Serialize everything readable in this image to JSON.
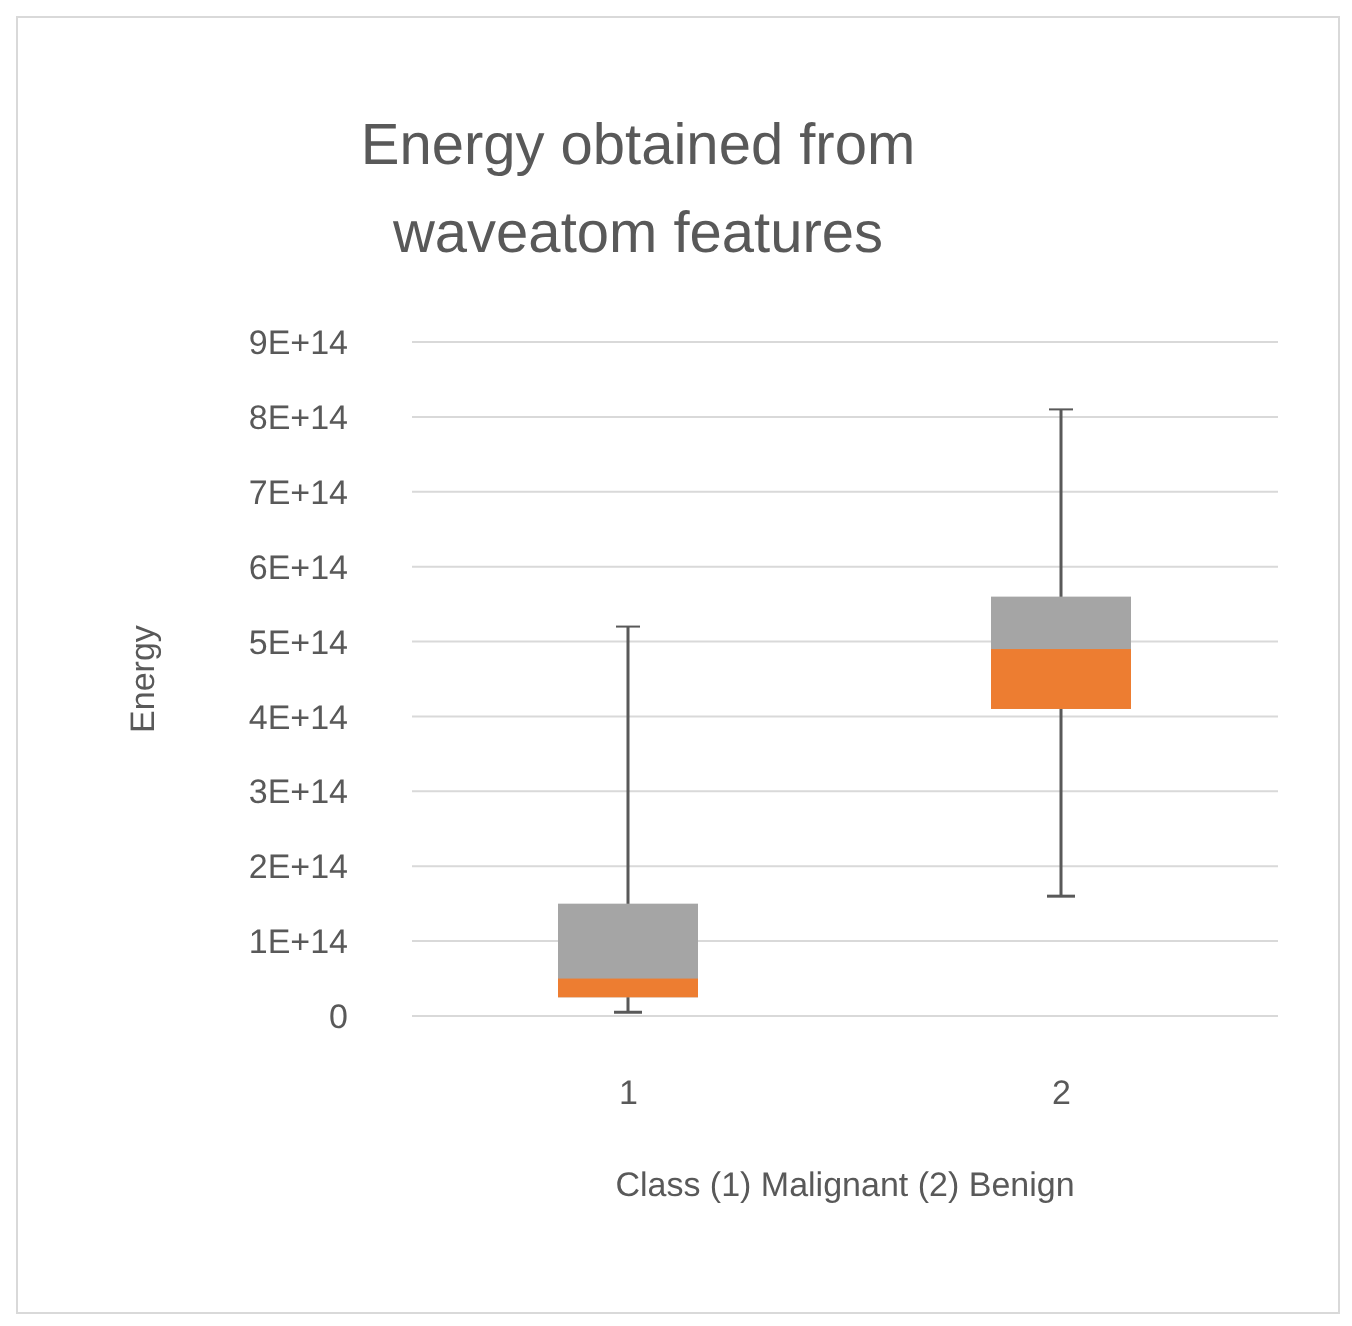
{
  "chart_data": {
    "type": "box",
    "title": "Energy obtained from waveatom features",
    "xlabel": "Class (1) Malignant  (2) Benign",
    "ylabel": "Energy",
    "categories": [
      "1",
      "2"
    ],
    "boxes": [
      {
        "low": 5000000000000.0,
        "q1": 25000000000000.0,
        "median": 50000000000000.0,
        "q3": 150000000000000.0,
        "high": 520000000000000.0
      },
      {
        "low": 160000000000000.0,
        "q1": 410000000000000.0,
        "median": 490000000000000.0,
        "q3": 560000000000000.0,
        "high": 810000000000000.0
      }
    ],
    "colors": [
      "#ed7d31",
      "#a5a5a5"
    ],
    "ylim": [
      0,
      900000000000000.0
    ],
    "yticks": [
      0,
      {
        "value": 100000000000000.0,
        "label": "1E+14"
      },
      {
        "value": 200000000000000.0,
        "label": "2E+14"
      },
      {
        "value": 300000000000000.0,
        "label": "3E+14"
      },
      {
        "value": 400000000000000.0,
        "label": "4E+14"
      },
      {
        "value": 500000000000000.0,
        "label": "5E+14"
      },
      {
        "value": 600000000000000.0,
        "label": "6E+14"
      },
      {
        "value": 700000000000000.0,
        "label": "7E+14"
      },
      {
        "value": 800000000000000.0,
        "label": "8E+14"
      },
      {
        "value": 900000000000000.0,
        "label": "9E+14"
      }
    ],
    "grid": "y"
  }
}
